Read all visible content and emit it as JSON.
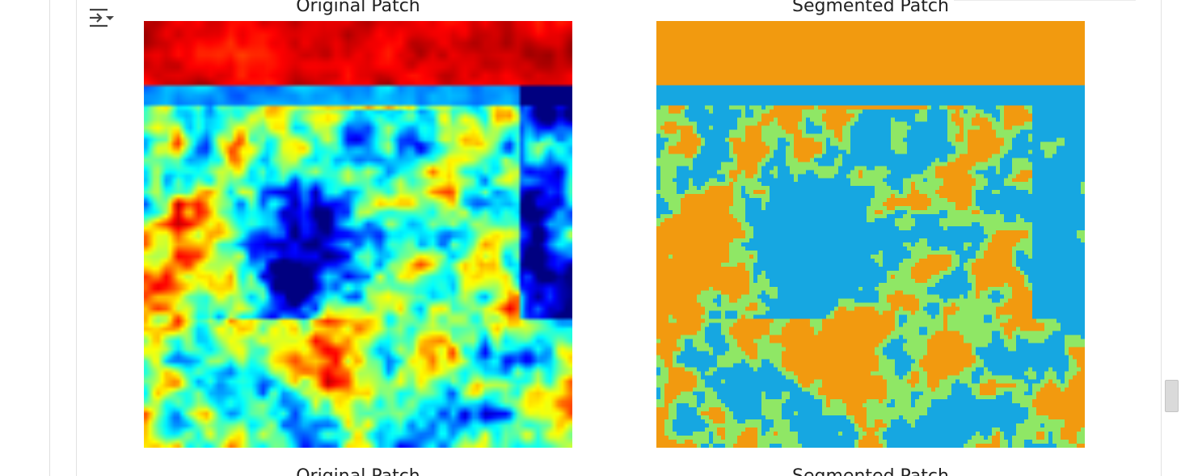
{
  "output": {
    "toggle_icon": "output-toggle-icon",
    "left_plot": {
      "title": "Original Patch",
      "caption": "Original Patch",
      "colormap": "jet"
    },
    "right_plot": {
      "title": "Segmented Patch",
      "caption": "Segmented Patch",
      "class_colors": [
        "#f29a0f",
        "#8fe765",
        "#16a7e1"
      ]
    }
  },
  "colors": {
    "border": "#e2e2e2",
    "scrollbar_thumb": "#dadada"
  }
}
